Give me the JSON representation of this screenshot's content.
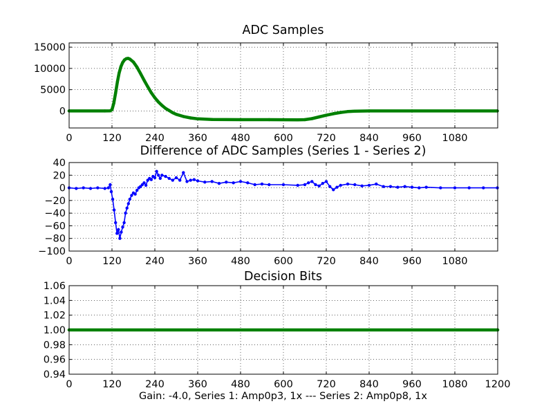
{
  "figure": {
    "xlabel": "Gain: -4.0, Series 1: Amp0p3, 1x --- Series 2: Amp0p8, 1x"
  },
  "chart_data": [
    {
      "type": "scatter",
      "title": "ADC Samples",
      "xlim": [
        0,
        1200
      ],
      "ylim": [
        -4000,
        16000
      ],
      "xticks": [
        "0",
        "120",
        "240",
        "360",
        "480",
        "600",
        "720",
        "840",
        "960",
        "1080"
      ],
      "yticks": [
        "0",
        "5000",
        "10000",
        "15000"
      ],
      "grid": true,
      "series": [
        {
          "color": "#008000",
          "marker": "dot",
          "points": [
            [
              0,
              0
            ],
            [
              100,
              0
            ],
            [
              115,
              20
            ],
            [
              120,
              300
            ],
            [
              125,
              1800
            ],
            [
              130,
              4200
            ],
            [
              135,
              6800
            ],
            [
              140,
              8900
            ],
            [
              145,
              10400
            ],
            [
              150,
              11400
            ],
            [
              155,
              12000
            ],
            [
              160,
              12300
            ],
            [
              165,
              12350
            ],
            [
              170,
              12200
            ],
            [
              180,
              11500
            ],
            [
              190,
              10300
            ],
            [
              200,
              8800
            ],
            [
              210,
              7200
            ],
            [
              220,
              5700
            ],
            [
              230,
              4300
            ],
            [
              240,
              3100
            ],
            [
              250,
              2100
            ],
            [
              260,
              1300
            ],
            [
              270,
              600
            ],
            [
              280,
              100
            ],
            [
              290,
              -400
            ],
            [
              300,
              -800
            ],
            [
              320,
              -1300
            ],
            [
              340,
              -1650
            ],
            [
              360,
              -1850
            ],
            [
              400,
              -2000
            ],
            [
              480,
              -2050
            ],
            [
              560,
              -2050
            ],
            [
              640,
              -2100
            ],
            [
              660,
              -2050
            ],
            [
              680,
              -1800
            ],
            [
              700,
              -1400
            ],
            [
              720,
              -1000
            ],
            [
              740,
              -650
            ],
            [
              760,
              -350
            ],
            [
              780,
              -150
            ],
            [
              800,
              -50
            ],
            [
              840,
              0
            ],
            [
              960,
              0
            ],
            [
              1080,
              0
            ],
            [
              1199,
              0
            ]
          ]
        }
      ]
    },
    {
      "type": "line",
      "title": "Difference of ADC Samples (Series 1 - Series 2)",
      "xlim": [
        0,
        1200
      ],
      "ylim": [
        -100,
        40
      ],
      "xticks": [
        "0",
        "120",
        "240",
        "360",
        "480",
        "600",
        "720",
        "840",
        "960",
        "1080"
      ],
      "yticks": [
        "40",
        "20",
        "0",
        "−20",
        "−40",
        "−60",
        "−80",
        "−100"
      ],
      "grid": true,
      "series": [
        {
          "color": "#0000ff",
          "marker": "dot",
          "points": [
            [
              0,
              0
            ],
            [
              20,
              -1
            ],
            [
              40,
              0
            ],
            [
              60,
              -1
            ],
            [
              80,
              0
            ],
            [
              100,
              -1
            ],
            [
              110,
              0
            ],
            [
              115,
              5
            ],
            [
              118,
              -6
            ],
            [
              122,
              -18
            ],
            [
              126,
              -35
            ],
            [
              130,
              -55
            ],
            [
              134,
              -72
            ],
            [
              138,
              -66
            ],
            [
              142,
              -80
            ],
            [
              146,
              -70
            ],
            [
              150,
              -62
            ],
            [
              154,
              -55
            ],
            [
              158,
              -40
            ],
            [
              162,
              -32
            ],
            [
              166,
              -25
            ],
            [
              170,
              -18
            ],
            [
              175,
              -12
            ],
            [
              180,
              -8
            ],
            [
              185,
              -10
            ],
            [
              190,
              -4
            ],
            [
              195,
              0
            ],
            [
              200,
              2
            ],
            [
              205,
              5
            ],
            [
              210,
              8
            ],
            [
              215,
              4
            ],
            [
              220,
              12
            ],
            [
              225,
              15
            ],
            [
              230,
              13
            ],
            [
              235,
              18
            ],
            [
              240,
              16
            ],
            [
              245,
              26
            ],
            [
              250,
              20
            ],
            [
              255,
              15
            ],
            [
              260,
              20
            ],
            [
              270,
              18
            ],
            [
              280,
              15
            ],
            [
              290,
              12
            ],
            [
              300,
              16
            ],
            [
              310,
              12
            ],
            [
              320,
              24
            ],
            [
              330,
              10
            ],
            [
              340,
              12
            ],
            [
              350,
              13
            ],
            [
              360,
              11
            ],
            [
              380,
              9
            ],
            [
              400,
              10
            ],
            [
              420,
              7
            ],
            [
              440,
              9
            ],
            [
              460,
              8
            ],
            [
              480,
              10
            ],
            [
              500,
              8
            ],
            [
              520,
              5
            ],
            [
              540,
              6
            ],
            [
              560,
              5
            ],
            [
              600,
              5
            ],
            [
              640,
              4
            ],
            [
              660,
              5
            ],
            [
              670,
              8
            ],
            [
              680,
              10
            ],
            [
              690,
              5
            ],
            [
              700,
              3
            ],
            [
              710,
              7
            ],
            [
              720,
              10
            ],
            [
              730,
              2
            ],
            [
              740,
              -3
            ],
            [
              750,
              1
            ],
            [
              760,
              4
            ],
            [
              780,
              6
            ],
            [
              800,
              5
            ],
            [
              820,
              3
            ],
            [
              840,
              4
            ],
            [
              860,
              6
            ],
            [
              880,
              2
            ],
            [
              900,
              2
            ],
            [
              920,
              1
            ],
            [
              940,
              2
            ],
            [
              960,
              1
            ],
            [
              980,
              0
            ],
            [
              1000,
              1
            ],
            [
              1040,
              0
            ],
            [
              1080,
              0
            ],
            [
              1120,
              0
            ],
            [
              1160,
              0
            ],
            [
              1199,
              0
            ]
          ]
        }
      ]
    },
    {
      "type": "scatter",
      "title": "Decision Bits",
      "xlim": [
        0,
        1200
      ],
      "ylim": [
        0.94,
        1.06
      ],
      "xticks": [
        "0",
        "120",
        "240",
        "360",
        "480",
        "600",
        "720",
        "840",
        "960",
        "1080",
        "1200"
      ],
      "yticks": [
        "1.06",
        "1.04",
        "1.02",
        "1.00",
        "0.98",
        "0.96",
        "0.94"
      ],
      "grid": true,
      "series": [
        {
          "color": "#008000",
          "marker": "dot",
          "points": [
            [
              0,
              1.0
            ],
            [
              1200,
              1.0
            ]
          ]
        }
      ]
    }
  ]
}
